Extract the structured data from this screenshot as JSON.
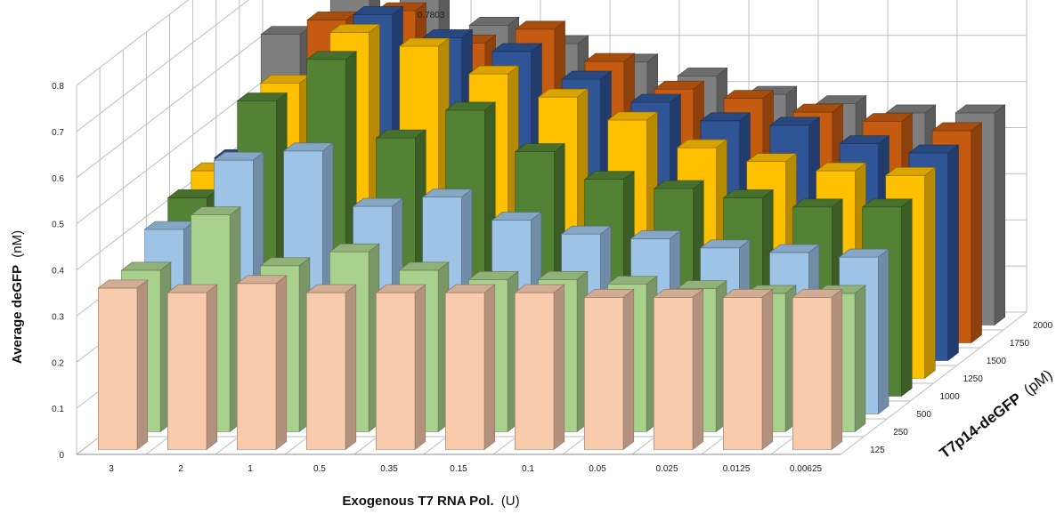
{
  "chart_data": {
    "type": "bar",
    "subtype": "3d-column",
    "ylabel_main": "Average deGFP",
    "ylabel_unit": "(nM)",
    "xlabel_main": "Exogenous T7 RNA Pol.",
    "xlabel_unit": "(U)",
    "zlabel_main": "T7p14-deGFP",
    "zlabel_unit": "(pM)",
    "categories": [
      "3",
      "2",
      "1",
      "0.5",
      "0.35",
      "0.15",
      "0.1",
      "0.05",
      "0.025",
      "0.0125",
      "0.00625"
    ],
    "y_ticks": [
      "0",
      "0.1",
      "0.2",
      "0.3",
      "0.4",
      "0.5",
      "0.6",
      "0.7",
      "0.8"
    ],
    "ylim": [
      0,
      0.8
    ],
    "grid": true,
    "annotation": "0.7803",
    "series": [
      {
        "name": "125",
        "color": "#f8cbad",
        "values": [
          0.35,
          0.34,
          0.36,
          0.34,
          0.34,
          0.34,
          0.34,
          0.33,
          0.33,
          0.33,
          0.33
        ]
      },
      {
        "name": "250",
        "color": "#a9d18e",
        "values": [
          0.35,
          0.47,
          0.36,
          0.39,
          0.35,
          0.33,
          0.33,
          0.32,
          0.31,
          0.3,
          0.3
        ]
      },
      {
        "name": "500",
        "color": "#9dc3e6",
        "values": [
          0.4,
          0.55,
          0.57,
          0.45,
          0.47,
          0.42,
          0.39,
          0.38,
          0.36,
          0.35,
          0.34
        ]
      },
      {
        "name": "1000",
        "color": "#548235",
        "values": [
          0.43,
          0.64,
          0.73,
          0.56,
          0.62,
          0.53,
          0.47,
          0.45,
          0.43,
          0.41,
          0.41
        ]
      },
      {
        "name": "1250",
        "color": "#ffc000",
        "values": [
          0.45,
          0.64,
          0.75,
          0.72,
          0.66,
          0.61,
          0.56,
          0.5,
          0.47,
          0.45,
          0.44
        ]
      },
      {
        "name": "1500",
        "color": "#2f5597",
        "values": [
          0.44,
          0.58,
          0.75,
          0.7,
          0.67,
          0.61,
          0.56,
          0.52,
          0.51,
          0.47,
          0.45
        ]
      },
      {
        "name": "1750",
        "color": "#c55a11",
        "values": [
          0.47,
          0.7,
          0.72,
          0.65,
          0.68,
          0.61,
          0.55,
          0.53,
          0.5,
          0.48,
          0.46
        ]
      },
      {
        "name": "2000",
        "color": "#7f7f7f",
        "values": [
          0.63,
          0.78,
          0.72,
          0.65,
          0.61,
          0.57,
          0.54,
          0.5,
          0.48,
          0.46,
          0.46
        ]
      }
    ]
  }
}
